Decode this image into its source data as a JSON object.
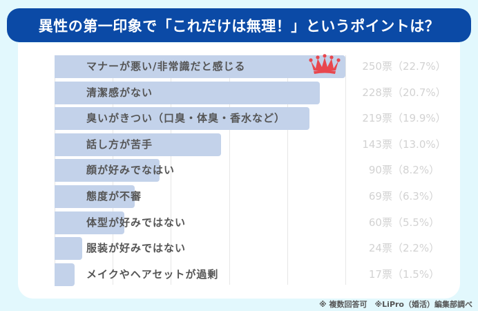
{
  "title": "異性の第一印象で「これだけは無理！」というポイントは？",
  "footnote": "※ 複数回答可　※LiPro（婚活）編集部調べ",
  "colors": {
    "banner": "#0b4aa6",
    "bar": "#c3d2ea",
    "crown": "#e8474e",
    "background": "#e2f8fd",
    "value_text": "#d2d2d2"
  },
  "icons": {
    "top_rank": "crown-icon"
  },
  "chart_data": {
    "type": "bar",
    "orientation": "horizontal",
    "title": "異性の第一印象で「これだけは無理！」というポイントは？",
    "categories": [
      "マナーが悪い/非常識だと感じる",
      "清潔感がない",
      "臭いがきつい（口臭・体臭・香水など）",
      "話し方が苦手",
      "顔が好みでなはい",
      "態度が不審",
      "体型が好みではない",
      "服装が好みではない",
      "メイクやヘアセットが過剰"
    ],
    "values": [
      250,
      228,
      219,
      143,
      90,
      69,
      60,
      24,
      17
    ],
    "percentages": [
      22.7,
      20.7,
      19.9,
      13.0,
      8.2,
      6.3,
      5.5,
      2.2,
      1.5
    ],
    "value_labels": [
      "250票（22.7%）",
      "228票（20.7%）",
      "219票（19.9%）",
      "143票（13.0%）",
      "90票（8.2%）",
      "69票（6.3%）",
      "60票（5.5%）",
      "24票（2.2%）",
      "17票（1.5%）"
    ],
    "xlim": [
      0,
      250
    ],
    "grid": true,
    "gridlines_at": [
      0,
      50,
      100,
      150,
      200,
      250
    ],
    "xlabel": "",
    "ylabel": "",
    "legend": null,
    "annotations": [
      "crown on top-ranked bar"
    ]
  }
}
